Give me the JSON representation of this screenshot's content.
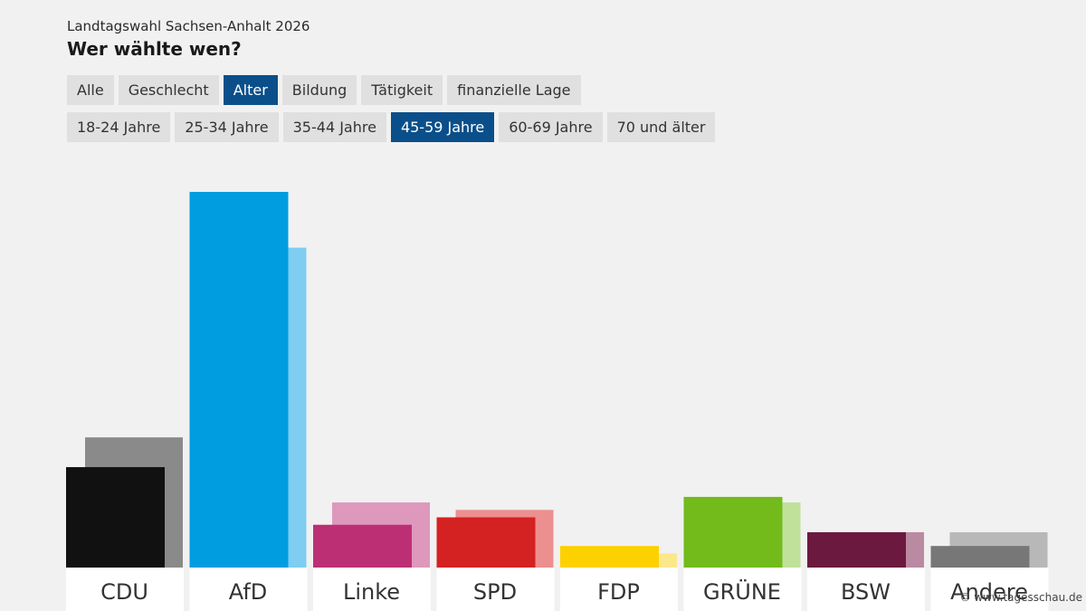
{
  "header": {
    "supertitle": "Landtagswahl Sachsen-Anhalt 2026",
    "title": "Wer wählte wen?"
  },
  "tabs_primary": [
    {
      "label": "Alle",
      "active": false
    },
    {
      "label": "Geschlecht",
      "active": false
    },
    {
      "label": "Alter",
      "active": true
    },
    {
      "label": "Bildung",
      "active": false
    },
    {
      "label": "Tätigkeit",
      "active": false
    },
    {
      "label": "finanzielle Lage",
      "active": false
    }
  ],
  "tabs_secondary": [
    {
      "label": "18-24 Jahre",
      "active": false
    },
    {
      "label": "25-34 Jahre",
      "active": false
    },
    {
      "label": "35-44 Jahre",
      "active": false
    },
    {
      "label": "45-59 Jahre",
      "active": true
    },
    {
      "label": "60-69 Jahre",
      "active": false
    },
    {
      "label": "70 und älter",
      "active": false
    }
  ],
  "credit": "© www.tagesschau.de",
  "colors": {
    "accent": "#0b4f8a"
  },
  "chart_data": {
    "type": "bar",
    "title": "Wer wählte wen?",
    "categories": [
      "CDU",
      "AfD",
      "Linke",
      "SPD",
      "FDP",
      "GRÜNE",
      "BSW",
      "Andere"
    ],
    "series": [
      {
        "values": [
          27,
          101,
          11.5,
          13.5,
          5.8,
          19,
          9.5,
          5.8
        ]
      },
      {
        "values": [
          35,
          86,
          17.5,
          15.5,
          3.8,
          17.5,
          9.5,
          9.5
        ]
      }
    ],
    "colors_primary": [
      "#111111",
      "#009de0",
      "#bc2f75",
      "#d42121",
      "#fdd100",
      "#72bb1b",
      "#6c1940",
      "#777777"
    ],
    "colors_secondary": [
      "#8a8a8a",
      "#7fcdf0",
      "#de98bc",
      "#ec8f8f",
      "#fbe88a",
      "#c0e19a",
      "#b98aa1",
      "#b8b8b8"
    ],
    "ylim": [
      0,
      110
    ],
    "xlabel": "",
    "ylabel": "",
    "grid": false
  }
}
